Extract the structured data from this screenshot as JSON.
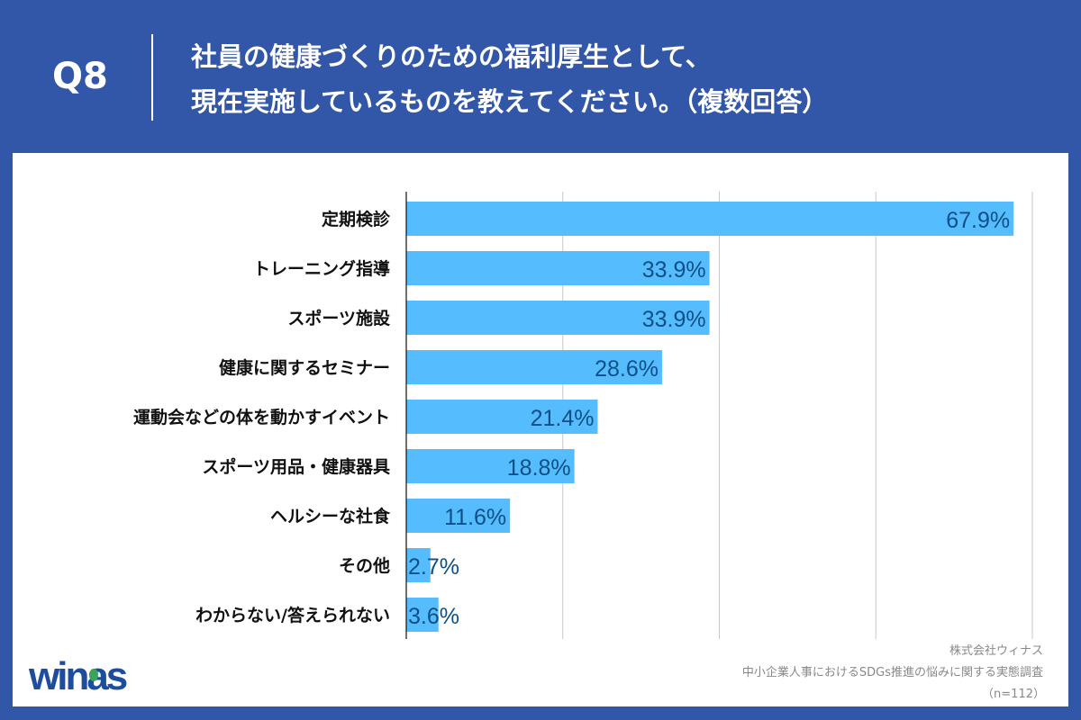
{
  "header": {
    "question_number": "Q8",
    "title_line1": "社員の健康づくりのための福利厚生として、",
    "title_line2": "現在実施しているものを教えてください。（複数回答）"
  },
  "chart_data": {
    "type": "bar",
    "orientation": "horizontal",
    "categories": [
      "定期検診",
      "トレーニング指導",
      "スポーツ施設",
      "健康に関するセミナー",
      "運動会などの体を動かすイベント",
      "スポーツ用品・健康器具",
      "ヘルシーな社食",
      "その他",
      "わからない/答えられない"
    ],
    "values": [
      67.9,
      33.9,
      33.9,
      28.6,
      21.4,
      18.8,
      11.6,
      2.7,
      3.6
    ],
    "data_labels": [
      "67.9%",
      "33.9%",
      "33.9%",
      "28.6%",
      "21.4%",
      "18.8%",
      "11.6%",
      "2.7%",
      "3.6%"
    ],
    "xlim": [
      0,
      70
    ],
    "gridlines": [
      17.5,
      35,
      52.5,
      70
    ],
    "grid": true,
    "bar_color": "#55bdfd",
    "label_color": "#0d4f86"
  },
  "footer": {
    "company": "株式会社ウィナス",
    "survey": "中小企業人事におけるSDGs推進の悩みに関する実態調査",
    "sample": "（n=112）",
    "logo_text": "winas"
  },
  "colors": {
    "background": "#3357a8",
    "logo": "#1d4e9e"
  }
}
